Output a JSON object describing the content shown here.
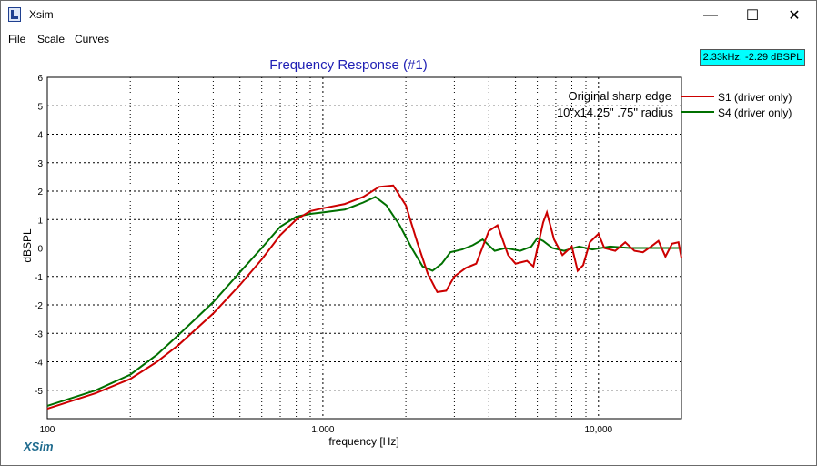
{
  "window": {
    "title": "Xsim",
    "minimize_glyph": "—",
    "maximize_glyph": "☐",
    "close_glyph": "✕"
  },
  "menu": {
    "items": [
      "File",
      "Scale",
      "Curves"
    ]
  },
  "readout": "2.33kHz, -2.29 dBSPL",
  "brand": "XSim",
  "colors": {
    "s1": "#cc0000",
    "s4": "#007000",
    "title": "#1f1fb4",
    "readout_bg": "#00ffff",
    "brand": "#1f6b8e"
  },
  "annotation": {
    "line1": "Original sharp edge",
    "line2": "10\"x14.25\" .75\" radius"
  },
  "chart_data": {
    "type": "line",
    "title": "Frequency Response (#1)",
    "xlabel": "frequency [Hz]",
    "ylabel": "dBSPL",
    "x_scale": "log",
    "xlim": [
      100,
      20000
    ],
    "ylim": [
      -6,
      6
    ],
    "grid": true,
    "legend_position": "right",
    "x_tick_labels": [
      {
        "value": 100,
        "label": "100"
      },
      {
        "value": 1000,
        "label": "1,000"
      },
      {
        "value": 10000,
        "label": "10,000"
      }
    ],
    "y_ticks": [
      -5,
      -4,
      -3,
      -2,
      -1,
      0,
      1,
      2,
      3,
      4,
      5,
      6
    ],
    "series": [
      {
        "name": "S1 (driver only)",
        "color": "#cc0000",
        "points": [
          [
            100,
            -5.65
          ],
          [
            150,
            -5.1
          ],
          [
            200,
            -4.6
          ],
          [
            250,
            -4.0
          ],
          [
            300,
            -3.4
          ],
          [
            400,
            -2.3
          ],
          [
            500,
            -1.3
          ],
          [
            600,
            -0.4
          ],
          [
            700,
            0.45
          ],
          [
            800,
            1.0
          ],
          [
            900,
            1.3
          ],
          [
            1000,
            1.4
          ],
          [
            1200,
            1.55
          ],
          [
            1400,
            1.8
          ],
          [
            1600,
            2.15
          ],
          [
            1800,
            2.2
          ],
          [
            2000,
            1.5
          ],
          [
            2200,
            0.2
          ],
          [
            2400,
            -0.9
          ],
          [
            2600,
            -1.55
          ],
          [
            2800,
            -1.5
          ],
          [
            3000,
            -1.0
          ],
          [
            3300,
            -0.7
          ],
          [
            3600,
            -0.55
          ],
          [
            4000,
            0.6
          ],
          [
            4300,
            0.8
          ],
          [
            4700,
            -0.25
          ],
          [
            5000,
            -0.55
          ],
          [
            5500,
            -0.45
          ],
          [
            5800,
            -0.65
          ],
          [
            6300,
            0.9
          ],
          [
            6500,
            1.25
          ],
          [
            6900,
            0.3
          ],
          [
            7400,
            -0.25
          ],
          [
            8000,
            0.05
          ],
          [
            8400,
            -0.8
          ],
          [
            8800,
            -0.6
          ],
          [
            9300,
            0.2
          ],
          [
            10000,
            0.5
          ],
          [
            10500,
            0.0
          ],
          [
            11500,
            -0.1
          ],
          [
            12500,
            0.2
          ],
          [
            13500,
            -0.1
          ],
          [
            14500,
            -0.15
          ],
          [
            15500,
            0.05
          ],
          [
            16500,
            0.25
          ],
          [
            17500,
            -0.3
          ],
          [
            18500,
            0.15
          ],
          [
            19500,
            0.2
          ],
          [
            20000,
            -0.35
          ]
        ]
      },
      {
        "name": "S4 (driver only)",
        "color": "#007000",
        "points": [
          [
            100,
            -5.55
          ],
          [
            150,
            -5.0
          ],
          [
            200,
            -4.45
          ],
          [
            250,
            -3.75
          ],
          [
            300,
            -3.05
          ],
          [
            400,
            -1.9
          ],
          [
            500,
            -0.85
          ],
          [
            600,
            0.0
          ],
          [
            700,
            0.75
          ],
          [
            800,
            1.1
          ],
          [
            900,
            1.2
          ],
          [
            1000,
            1.25
          ],
          [
            1200,
            1.35
          ],
          [
            1400,
            1.6
          ],
          [
            1550,
            1.8
          ],
          [
            1700,
            1.5
          ],
          [
            1900,
            0.8
          ],
          [
            2100,
            0.0
          ],
          [
            2300,
            -0.65
          ],
          [
            2500,
            -0.8
          ],
          [
            2700,
            -0.55
          ],
          [
            2900,
            -0.15
          ],
          [
            3200,
            -0.05
          ],
          [
            3500,
            0.1
          ],
          [
            3800,
            0.3
          ],
          [
            4200,
            -0.1
          ],
          [
            4600,
            0.0
          ],
          [
            5200,
            -0.1
          ],
          [
            5700,
            0.05
          ],
          [
            6000,
            0.35
          ],
          [
            6300,
            0.25
          ],
          [
            6800,
            0.0
          ],
          [
            7500,
            -0.1
          ],
          [
            8500,
            0.05
          ],
          [
            9500,
            -0.05
          ],
          [
            11000,
            0.05
          ],
          [
            13000,
            0.0
          ],
          [
            15000,
            0.0
          ],
          [
            20000,
            0.0
          ]
        ]
      }
    ]
  }
}
